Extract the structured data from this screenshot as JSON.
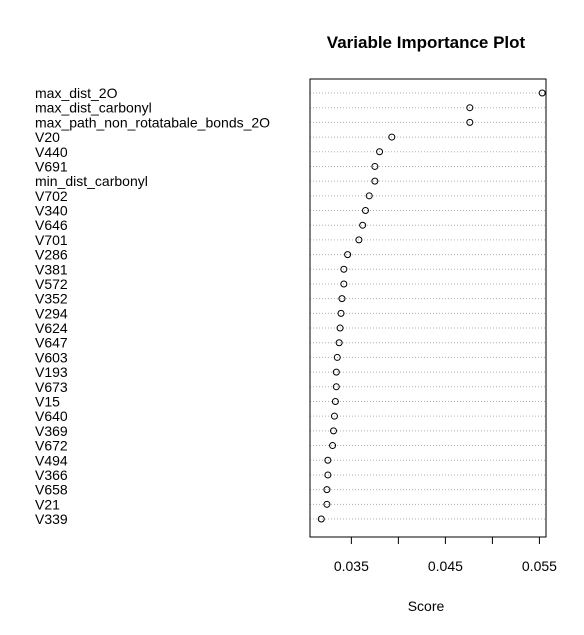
{
  "chart_data": {
    "type": "dotplot",
    "title": "Variable Importance Plot",
    "xlabel": "Score",
    "ylabel": "",
    "xlim": [
      0.0306,
      0.0557
    ],
    "xticks": [
      0.035,
      0.045,
      0.055
    ],
    "xtick_labels": [
      "0.035",
      "0.045",
      "0.055"
    ],
    "grid": "dotted horizontal lines per variable",
    "categories": [
      "max_dist_2O",
      "max_dist_carbonyl",
      "max_path_non_rotatabale_bonds_2O",
      "V20",
      "V440",
      "V691",
      "min_dist_carbonyl",
      "V702",
      "V340",
      "V646",
      "V701",
      "V286",
      "V381",
      "V572",
      "V352",
      "V294",
      "V624",
      "V647",
      "V603",
      "V193",
      "V673",
      "V15",
      "V640",
      "V369",
      "V672",
      "V494",
      "V366",
      "V658",
      "V21",
      "V339"
    ],
    "values": [
      0.0553,
      0.0476,
      0.0476,
      0.0393,
      0.038,
      0.0375,
      0.0375,
      0.0369,
      0.0365,
      0.0362,
      0.0358,
      0.0346,
      0.0342,
      0.0342,
      0.034,
      0.0339,
      0.0338,
      0.0337,
      0.0335,
      0.0334,
      0.0334,
      0.0333,
      0.0332,
      0.0331,
      0.033,
      0.0325,
      0.0325,
      0.0324,
      0.0324,
      0.0318
    ]
  }
}
